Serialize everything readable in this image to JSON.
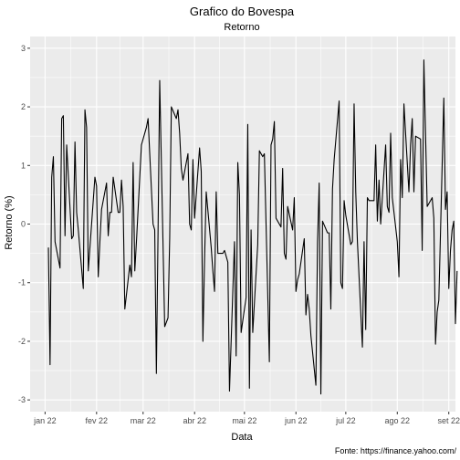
{
  "chart_data": {
    "type": "line",
    "title": "Grafico do Bovespa",
    "subtitle": "Retorno",
    "xlabel": "Data",
    "ylabel": "Retorno (%)",
    "caption": "Fonte: https://finance.yahoo.com/",
    "ylim": [
      -3.2,
      3.2
    ],
    "xlim": [
      "2021-12-23",
      "2022-09-05"
    ],
    "yticks": [
      -3,
      -2,
      -1,
      0,
      1,
      2,
      3
    ],
    "xticks": [
      {
        "date": "2022-01-01",
        "label": "jan 22"
      },
      {
        "date": "2022-02-01",
        "label": "fev 22"
      },
      {
        "date": "2022-03-01",
        "label": "mar 22"
      },
      {
        "date": "2022-04-01",
        "label": "abr 22"
      },
      {
        "date": "2022-05-01",
        "label": "mai 22"
      },
      {
        "date": "2022-06-01",
        "label": "jun 22"
      },
      {
        "date": "2022-07-01",
        "label": "jul 22"
      },
      {
        "date": "2022-08-01",
        "label": "ago 22"
      },
      {
        "date": "2022-09-01",
        "label": "set 22"
      }
    ],
    "grid": true,
    "series": [
      {
        "line_color": "#000000",
        "points": [
          [
            "2022-01-03",
            -0.4
          ],
          [
            "2022-01-04",
            -2.4
          ],
          [
            "2022-01-05",
            0.8
          ],
          [
            "2022-01-06",
            1.15
          ],
          [
            "2022-01-07",
            -0.3
          ],
          [
            "2022-01-10",
            -0.75
          ],
          [
            "2022-01-11",
            1.8
          ],
          [
            "2022-01-12",
            1.85
          ],
          [
            "2022-01-13",
            -0.2
          ],
          [
            "2022-01-14",
            1.35
          ],
          [
            "2022-01-17",
            -0.25
          ],
          [
            "2022-01-18",
            -0.2
          ],
          [
            "2022-01-19",
            1.4
          ],
          [
            "2022-01-20",
            0.2
          ],
          [
            "2022-01-21",
            -0.1
          ],
          [
            "2022-01-24",
            -1.1
          ],
          [
            "2022-01-25",
            1.95
          ],
          [
            "2022-01-26",
            1.65
          ],
          [
            "2022-01-27",
            -0.8
          ],
          [
            "2022-01-28",
            -0.4
          ],
          [
            "2022-01-31",
            0.8
          ],
          [
            "2022-02-01",
            0.65
          ],
          [
            "2022-02-02",
            -0.9
          ],
          [
            "2022-02-03",
            -0.3
          ],
          [
            "2022-02-04",
            0.25
          ],
          [
            "2022-02-07",
            0.7
          ],
          [
            "2022-02-08",
            -0.2
          ],
          [
            "2022-02-09",
            0.2
          ],
          [
            "2022-02-10",
            0.2
          ],
          [
            "2022-02-11",
            0.8
          ],
          [
            "2022-02-14",
            0.2
          ],
          [
            "2022-02-15",
            0.2
          ],
          [
            "2022-02-16",
            0.75
          ],
          [
            "2022-02-17",
            0.3
          ],
          [
            "2022-02-18",
            -1.45
          ],
          [
            "2022-02-21",
            -0.7
          ],
          [
            "2022-02-22",
            -0.9
          ],
          [
            "2022-02-23",
            1.05
          ],
          [
            "2022-02-24",
            -0.8
          ],
          [
            "2022-02-25",
            -0.3
          ],
          [
            "2022-02-28",
            1.35
          ],
          [
            "2022-03-01",
            1.45
          ],
          [
            "2022-03-02",
            1.55
          ],
          [
            "2022-03-03",
            1.65
          ],
          [
            "2022-03-04",
            1.8
          ],
          [
            "2022-03-07",
            0.0
          ],
          [
            "2022-03-08",
            -0.1
          ],
          [
            "2022-03-09",
            -2.55
          ],
          [
            "2022-03-10",
            -0.15
          ],
          [
            "2022-03-11",
            2.45
          ],
          [
            "2022-03-14",
            -1.75
          ],
          [
            "2022-03-16",
            -1.6
          ],
          [
            "2022-03-17",
            -0.25
          ],
          [
            "2022-03-18",
            2.0
          ],
          [
            "2022-03-21",
            1.8
          ],
          [
            "2022-03-22",
            1.95
          ],
          [
            "2022-03-23",
            1.55
          ],
          [
            "2022-03-24",
            0.95
          ],
          [
            "2022-03-25",
            0.75
          ],
          [
            "2022-03-28",
            1.2
          ],
          [
            "2022-03-29",
            0.0
          ],
          [
            "2022-03-30",
            -0.1
          ],
          [
            "2022-03-31",
            1.1
          ],
          [
            "2022-04-01",
            0.1
          ],
          [
            "2022-04-04",
            1.3
          ],
          [
            "2022-04-05",
            0.9
          ],
          [
            "2022-04-06",
            -2.0
          ],
          [
            "2022-04-07",
            -0.6
          ],
          [
            "2022-04-08",
            0.55
          ],
          [
            "2022-04-11",
            -0.4
          ],
          [
            "2022-04-12",
            -0.8
          ],
          [
            "2022-04-13",
            -1.15
          ],
          [
            "2022-04-14",
            0.55
          ],
          [
            "2022-04-15",
            -0.5
          ],
          [
            "2022-04-18",
            -0.5
          ],
          [
            "2022-04-19",
            -0.45
          ],
          [
            "2022-04-20",
            -0.55
          ],
          [
            "2022-04-21",
            -0.65
          ],
          [
            "2022-04-22",
            -2.85
          ],
          [
            "2022-04-25",
            -0.3
          ],
          [
            "2022-04-26",
            -2.25
          ],
          [
            "2022-04-27",
            1.05
          ],
          [
            "2022-04-28",
            0.5
          ],
          [
            "2022-04-29",
            -1.85
          ],
          [
            "2022-05-02",
            -1.25
          ],
          [
            "2022-05-03",
            1.7
          ],
          [
            "2022-05-04",
            -2.8
          ],
          [
            "2022-05-05",
            -0.1
          ],
          [
            "2022-05-06",
            -1.85
          ],
          [
            "2022-05-09",
            -0.35
          ],
          [
            "2022-05-10",
            1.25
          ],
          [
            "2022-05-11",
            1.2
          ],
          [
            "2022-05-12",
            1.15
          ],
          [
            "2022-05-13",
            1.2
          ],
          [
            "2022-05-16",
            -2.35
          ],
          [
            "2022-05-17",
            1.35
          ],
          [
            "2022-05-18",
            1.45
          ],
          [
            "2022-05-19",
            1.75
          ],
          [
            "2022-05-20",
            0.1
          ],
          [
            "2022-05-23",
            -0.05
          ],
          [
            "2022-05-24",
            0.95
          ],
          [
            "2022-05-25",
            -0.5
          ],
          [
            "2022-05-26",
            -0.6
          ],
          [
            "2022-05-27",
            0.3
          ],
          [
            "2022-05-30",
            -0.1
          ],
          [
            "2022-05-31",
            0.45
          ],
          [
            "2022-06-01",
            -1.15
          ],
          [
            "2022-06-02",
            -0.95
          ],
          [
            "2022-06-03",
            -0.85
          ],
          [
            "2022-06-06",
            -0.25
          ],
          [
            "2022-06-07",
            -1.55
          ],
          [
            "2022-06-08",
            -1.2
          ],
          [
            "2022-06-09",
            -1.45
          ],
          [
            "2022-06-10",
            -1.9
          ],
          [
            "2022-06-13",
            -2.75
          ],
          [
            "2022-06-14",
            -0.3
          ],
          [
            "2022-06-15",
            0.7
          ],
          [
            "2022-06-16",
            -2.9
          ],
          [
            "2022-06-17",
            0.05
          ],
          [
            "2022-06-20",
            -0.15
          ],
          [
            "2022-06-21",
            -0.15
          ],
          [
            "2022-06-22",
            -1.45
          ],
          [
            "2022-06-23",
            0.6
          ],
          [
            "2022-06-24",
            1.1
          ],
          [
            "2022-06-27",
            2.1
          ],
          [
            "2022-06-28",
            -1.0
          ],
          [
            "2022-06-29",
            -1.1
          ],
          [
            "2022-06-30",
            0.4
          ],
          [
            "2022-07-01",
            0.15
          ],
          [
            "2022-07-04",
            -0.35
          ],
          [
            "2022-07-05",
            -0.3
          ],
          [
            "2022-07-06",
            2.05
          ],
          [
            "2022-07-07",
            0.55
          ],
          [
            "2022-07-08",
            -0.3
          ],
          [
            "2022-07-11",
            -2.1
          ],
          [
            "2022-07-12",
            -0.3
          ],
          [
            "2022-07-13",
            -1.8
          ],
          [
            "2022-07-14",
            0.45
          ],
          [
            "2022-07-15",
            0.4
          ],
          [
            "2022-07-18",
            0.4
          ],
          [
            "2022-07-19",
            1.35
          ],
          [
            "2022-07-20",
            0.05
          ],
          [
            "2022-07-21",
            0.75
          ],
          [
            "2022-07-22",
            0.0
          ],
          [
            "2022-07-25",
            1.35
          ],
          [
            "2022-07-26",
            0.3
          ],
          [
            "2022-07-27",
            0.2
          ],
          [
            "2022-07-28",
            1.55
          ],
          [
            "2022-07-29",
            0.45
          ],
          [
            "2022-08-01",
            -0.3
          ],
          [
            "2022-08-02",
            -0.9
          ],
          [
            "2022-08-03",
            1.1
          ],
          [
            "2022-08-04",
            0.45
          ],
          [
            "2022-08-05",
            2.05
          ],
          [
            "2022-08-08",
            0.55
          ],
          [
            "2022-08-09",
            1.35
          ],
          [
            "2022-08-10",
            1.8
          ],
          [
            "2022-08-11",
            0.55
          ],
          [
            "2022-08-12",
            1.5
          ],
          [
            "2022-08-15",
            1.45
          ],
          [
            "2022-08-16",
            -0.45
          ],
          [
            "2022-08-17",
            2.8
          ],
          [
            "2022-08-18",
            1.55
          ],
          [
            "2022-08-19",
            0.3
          ],
          [
            "2022-08-22",
            0.45
          ],
          [
            "2022-08-23",
            0.1
          ],
          [
            "2022-08-24",
            -2.05
          ],
          [
            "2022-08-25",
            -1.5
          ],
          [
            "2022-08-26",
            -1.3
          ],
          [
            "2022-08-29",
            2.15
          ],
          [
            "2022-08-30",
            0.25
          ],
          [
            "2022-08-31",
            0.55
          ],
          [
            "2022-09-01",
            -1.1
          ],
          [
            "2022-09-02",
            -0.45
          ],
          [
            "2022-09-03",
            -0.1
          ],
          [
            "2022-09-04",
            0.05
          ],
          [
            "2022-09-05",
            -1.7
          ],
          [
            "2022-09-06",
            -0.8
          ]
        ]
      }
    ]
  }
}
